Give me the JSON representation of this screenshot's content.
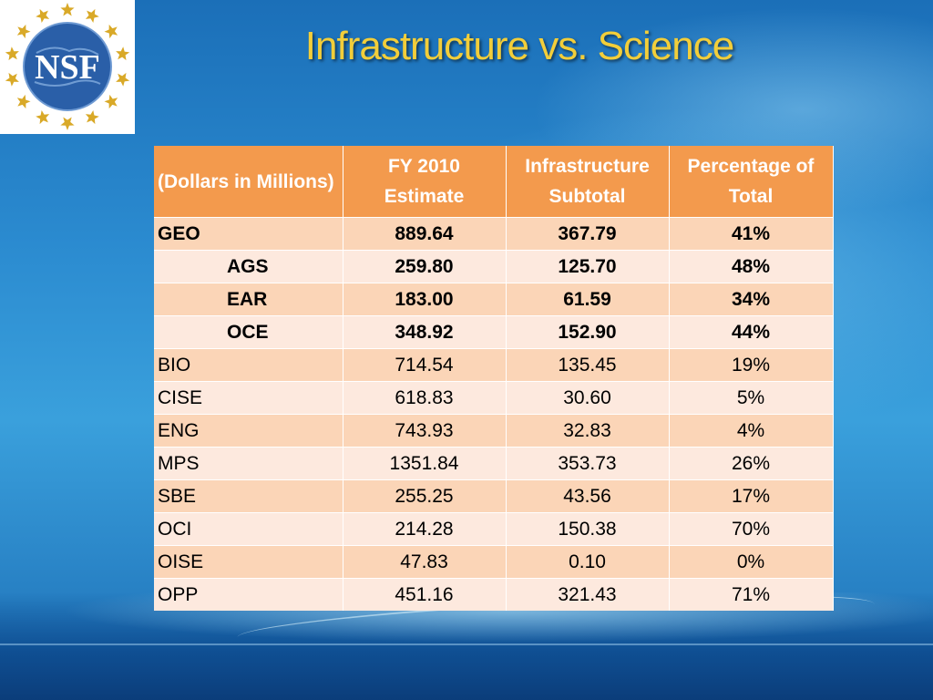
{
  "title": "Infrastructure vs. Science",
  "logo": {
    "text": "NSF",
    "icon": "nsf-globe-seal-icon",
    "colors": {
      "globe": "#2a5fa8",
      "stars": "#d9a928",
      "text": "#ffffff"
    }
  },
  "colors": {
    "title": "#f2ce3a",
    "header_fill": "#f39a4d",
    "row_odd": "#fbd5b7",
    "row_even": "#fde9de"
  },
  "table": {
    "headers": [
      "(Dollars in Millions)",
      "FY 2010 Estimate",
      "Infrastructure Subtotal",
      "Percentage of Total"
    ],
    "rows": [
      {
        "name": "GEO",
        "estimate": "889.64",
        "infrastructure": "367.79",
        "percentage": "41%",
        "bold": true,
        "indent": false
      },
      {
        "name": "AGS",
        "estimate": "259.80",
        "infrastructure": "125.70",
        "percentage": "48%",
        "bold": true,
        "indent": true
      },
      {
        "name": "EAR",
        "estimate": "183.00",
        "infrastructure": "61.59",
        "percentage": "34%",
        "bold": true,
        "indent": true
      },
      {
        "name": "OCE",
        "estimate": "348.92",
        "infrastructure": "152.90",
        "percentage": "44%",
        "bold": true,
        "indent": true
      },
      {
        "name": "BIO",
        "estimate": "714.54",
        "infrastructure": "135.45",
        "percentage": "19%",
        "bold": false,
        "indent": false
      },
      {
        "name": "CISE",
        "estimate": "618.83",
        "infrastructure": "30.60",
        "percentage": "5%",
        "bold": false,
        "indent": false
      },
      {
        "name": "ENG",
        "estimate": "743.93",
        "infrastructure": "32.83",
        "percentage": "4%",
        "bold": false,
        "indent": false
      },
      {
        "name": "MPS",
        "estimate": "1351.84",
        "infrastructure": "353.73",
        "percentage": "26%",
        "bold": false,
        "indent": false
      },
      {
        "name": "SBE",
        "estimate": "255.25",
        "infrastructure": "43.56",
        "percentage": "17%",
        "bold": false,
        "indent": false
      },
      {
        "name": "OCI",
        "estimate": "214.28",
        "infrastructure": "150.38",
        "percentage": "70%",
        "bold": false,
        "indent": false
      },
      {
        "name": "OISE",
        "estimate": "47.83",
        "infrastructure": "0.10",
        "percentage": "0%",
        "bold": false,
        "indent": false
      },
      {
        "name": "OPP",
        "estimate": "451.16",
        "infrastructure": "321.43",
        "percentage": "71%",
        "bold": false,
        "indent": false
      }
    ]
  }
}
